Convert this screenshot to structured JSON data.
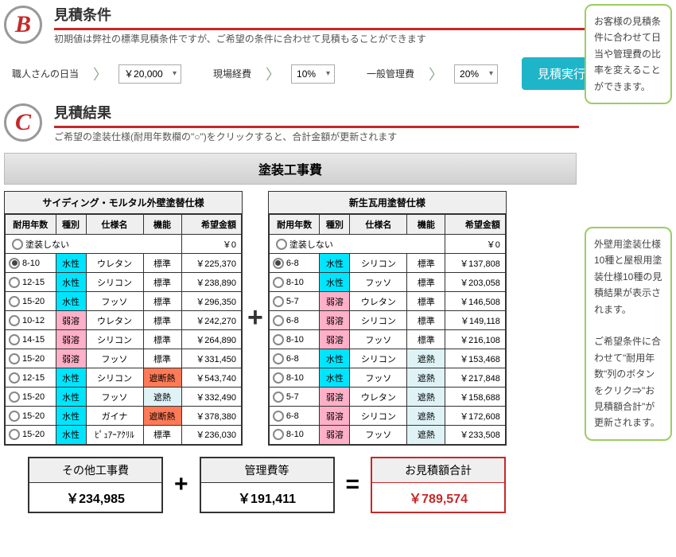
{
  "sectionB": {
    "badge": "B",
    "title": "見積条件",
    "sub": "初期値は弊社の標準見積条件ですが、ご希望の条件に合わせて見積もることができます"
  },
  "conditions": {
    "wage_label": "職人さんの日当",
    "wage_value": "￥20,000",
    "onsite_label": "現場経費",
    "onsite_value": "10%",
    "mgmt_label": "一般管理費",
    "mgmt_value": "20%",
    "run": "見積実行"
  },
  "annotB": "お客様の見積条件に合わせて日当や管理費の比率を変えることができます。",
  "sectionC": {
    "badge": "C",
    "title": "見積結果",
    "sub": "ご希望の塗装仕様(耐用年数欄の\"○\")をクリックすると、合計金額が更新されます"
  },
  "cost_title": "塗装工事費",
  "table_headers": [
    "耐用年数",
    "種別",
    "仕様名",
    "機能",
    "希望金額"
  ],
  "left": {
    "caption": "サイディング・モルタル外壁塗替仕様",
    "no_paint": "塗装しない",
    "no_paint_price": "￥0",
    "rows": [
      {
        "sel": true,
        "years": "8-10",
        "type": "水性",
        "spec": "ウレタン",
        "func": "標準",
        "price": "￥225,370",
        "tcls": "aq",
        "fcls": "std"
      },
      {
        "sel": false,
        "years": "12-15",
        "type": "水性",
        "spec": "シリコン",
        "func": "標準",
        "price": "￥238,890",
        "tcls": "aq",
        "fcls": "std"
      },
      {
        "sel": false,
        "years": "15-20",
        "type": "水性",
        "spec": "フッソ",
        "func": "標準",
        "price": "￥296,350",
        "tcls": "aq",
        "fcls": "std"
      },
      {
        "sel": false,
        "years": "10-12",
        "type": "弱溶",
        "spec": "ウレタン",
        "func": "標準",
        "price": "￥242,270",
        "tcls": "weak",
        "fcls": "std"
      },
      {
        "sel": false,
        "years": "14-15",
        "type": "弱溶",
        "spec": "シリコン",
        "func": "標準",
        "price": "￥264,890",
        "tcls": "weak",
        "fcls": "std"
      },
      {
        "sel": false,
        "years": "15-20",
        "type": "弱溶",
        "spec": "フッソ",
        "func": "標準",
        "price": "￥331,450",
        "tcls": "weak",
        "fcls": "std"
      },
      {
        "sel": false,
        "years": "12-15",
        "type": "水性",
        "spec": "シリコン",
        "func": "遮断熱",
        "price": "￥543,740",
        "tcls": "aq",
        "fcls": "heat"
      },
      {
        "sel": false,
        "years": "15-20",
        "type": "水性",
        "spec": "フッソ",
        "func": "遮熱",
        "price": "￥332,490",
        "tcls": "aq",
        "fcls": "heat2"
      },
      {
        "sel": false,
        "years": "15-20",
        "type": "水性",
        "spec": "ガイナ",
        "func": "遮断熱",
        "price": "￥378,380",
        "tcls": "aq",
        "fcls": "heat"
      },
      {
        "sel": false,
        "years": "15-20",
        "type": "水性",
        "spec": "ﾋﾟｭｱｰｱｸﾘﾙ",
        "func": "標準",
        "price": "￥236,030",
        "tcls": "aq",
        "fcls": "std"
      }
    ]
  },
  "right": {
    "caption": "新生瓦用塗替仕様",
    "no_paint": "塗装しない",
    "no_paint_price": "￥0",
    "rows": [
      {
        "sel": true,
        "years": "6-8",
        "type": "水性",
        "spec": "シリコン",
        "func": "標準",
        "price": "￥137,808",
        "tcls": "aq",
        "fcls": "std"
      },
      {
        "sel": false,
        "years": "8-10",
        "type": "水性",
        "spec": "フッソ",
        "func": "標準",
        "price": "￥203,058",
        "tcls": "aq",
        "fcls": "std"
      },
      {
        "sel": false,
        "years": "5-7",
        "type": "弱溶",
        "spec": "ウレタン",
        "func": "標準",
        "price": "￥146,508",
        "tcls": "weak",
        "fcls": "std"
      },
      {
        "sel": false,
        "years": "6-8",
        "type": "弱溶",
        "spec": "シリコン",
        "func": "標準",
        "price": "￥149,118",
        "tcls": "weak",
        "fcls": "std"
      },
      {
        "sel": false,
        "years": "8-10",
        "type": "弱溶",
        "spec": "フッソ",
        "func": "標準",
        "price": "￥216,108",
        "tcls": "weak",
        "fcls": "std"
      },
      {
        "sel": false,
        "years": "6-8",
        "type": "水性",
        "spec": "シリコン",
        "func": "遮熱",
        "price": "￥153,468",
        "tcls": "aq",
        "fcls": "heat2"
      },
      {
        "sel": false,
        "years": "8-10",
        "type": "水性",
        "spec": "フッソ",
        "func": "遮熱",
        "price": "￥217,848",
        "tcls": "aq",
        "fcls": "heat2"
      },
      {
        "sel": false,
        "years": "5-7",
        "type": "弱溶",
        "spec": "ウレタン",
        "func": "遮熱",
        "price": "￥158,688",
        "tcls": "weak",
        "fcls": "heat2"
      },
      {
        "sel": false,
        "years": "6-8",
        "type": "弱溶",
        "spec": "シリコン",
        "func": "遮熱",
        "price": "￥172,608",
        "tcls": "weak",
        "fcls": "heat2"
      },
      {
        "sel": false,
        "years": "8-10",
        "type": "弱溶",
        "spec": "フッソ",
        "func": "遮熱",
        "price": "￥233,508",
        "tcls": "weak",
        "fcls": "heat2"
      }
    ]
  },
  "annotC": "外壁用塗装仕様10種と屋根用塗装仕様10種の見積結果が表示されます。\n\nご希望条件に合わせて\"耐用年数\"列のボタンをクリク⇒\"お見積額合計\"が更新されます。",
  "summary": {
    "other_label": "その他工事費",
    "other_value": "￥234,985",
    "mgmt_label": "管理費等",
    "mgmt_value": "￥191,411",
    "total_label": "お見積額合計",
    "total_value": "￥789,574"
  },
  "colors": {
    "accent": "#c62828",
    "aq": "#00e5ff",
    "weak": "#ffb0c8",
    "heat": "#ff7b57",
    "heat2": "#dff3f7",
    "run_btn": "#1fb5c9",
    "annot_border": "#9ccc65"
  }
}
